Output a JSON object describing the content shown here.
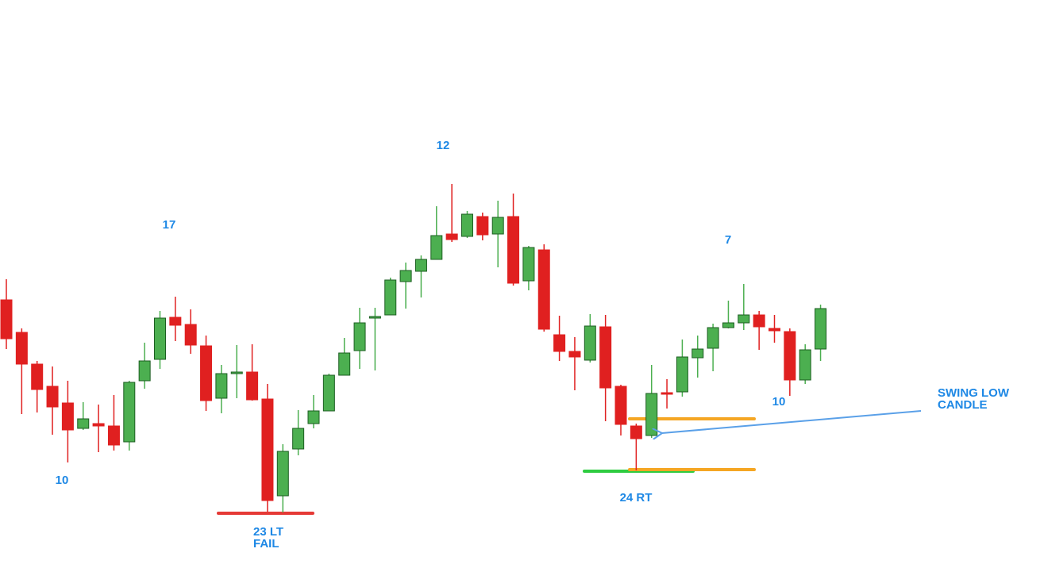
{
  "chart_data": {
    "type": "candlestick",
    "ylim": [
      0,
      711
    ],
    "up_color": "#4caf50",
    "down_color": "#e02020",
    "up_border": "#1b5e20",
    "down_border": "#b71c1c",
    "open": [
      333,
      292,
      252,
      224,
      203,
      171,
      177,
      174,
      154,
      231,
      258,
      311,
      302,
      275,
      209,
      240,
      242,
      208,
      86,
      145,
      177,
      193,
      238,
      269,
      310,
      314,
      356,
      369,
      384,
      416,
      413,
      438,
      416,
      438,
      357,
      396,
      289,
      268,
      257,
      299,
      224,
      174,
      162,
      216,
      217,
      260,
      272,
      298,
      304,
      314,
      297,
      293,
      232,
      271
    ],
    "high": [
      359,
      297,
      256,
      249,
      231,
      204,
      201,
      213,
      231,
      279,
      319,
      337,
      321,
      288,
      251,
      276,
      277,
      227,
      151,
      194,
      213,
      240,
      285,
      323,
      323,
      361,
      380,
      389,
      451,
      479,
      445,
      443,
      458,
      467,
      401,
      403,
      313,
      286,
      315,
      314,
      226,
      177,
      251,
      233,
      283,
      288,
      303,
      332,
      353,
      319,
      314,
      297,
      277,
      327
    ],
    "low": [
      271,
      189,
      191,
      163,
      128,
      169,
      141,
      143,
      143,
      221,
      246,
      281,
      265,
      193,
      190,
      209,
      206,
      66,
      65,
      137,
      171,
      193,
      238,
      246,
      244,
      314,
      322,
      336,
      384,
      406,
      411,
      408,
      374,
      351,
      345,
      293,
      256,
      219,
      254,
      180,
      162,
      118,
      159,
      196,
      211,
      235,
      243,
      297,
      295,
      270,
      279,
      212,
      227,
      256
    ],
    "close": [
      284,
      252,
      220,
      198,
      169,
      183,
      174,
      150,
      229,
      256,
      310,
      301,
      276,
      206,
      240,
      242,
      207,
      80,
      142,
      171,
      193,
      238,
      266,
      304,
      312,
      358,
      370,
      384,
      414,
      409,
      441,
      415,
      437,
      354,
      399,
      296,
      268,
      261,
      300,
      222,
      176,
      158,
      215,
      214,
      261,
      271,
      298,
      304,
      314,
      299,
      294,
      232,
      270,
      322
    ],
    "levels": [
      {
        "value": 64,
        "color": "#e53935"
      },
      {
        "value": 117,
        "color": "#2ecc40"
      },
      {
        "value": 183,
        "color": "#f5a623"
      },
      {
        "value": 119,
        "color": "#f5a623"
      }
    ],
    "annotations": [
      [
        "10"
      ],
      [
        "17"
      ],
      [
        "12"
      ],
      [
        "7"
      ],
      [
        "10"
      ],
      [
        "23 LT",
        "FAIL"
      ],
      [
        "24 RT"
      ],
      [
        "SWING LOW",
        "CANDLE"
      ]
    ]
  }
}
